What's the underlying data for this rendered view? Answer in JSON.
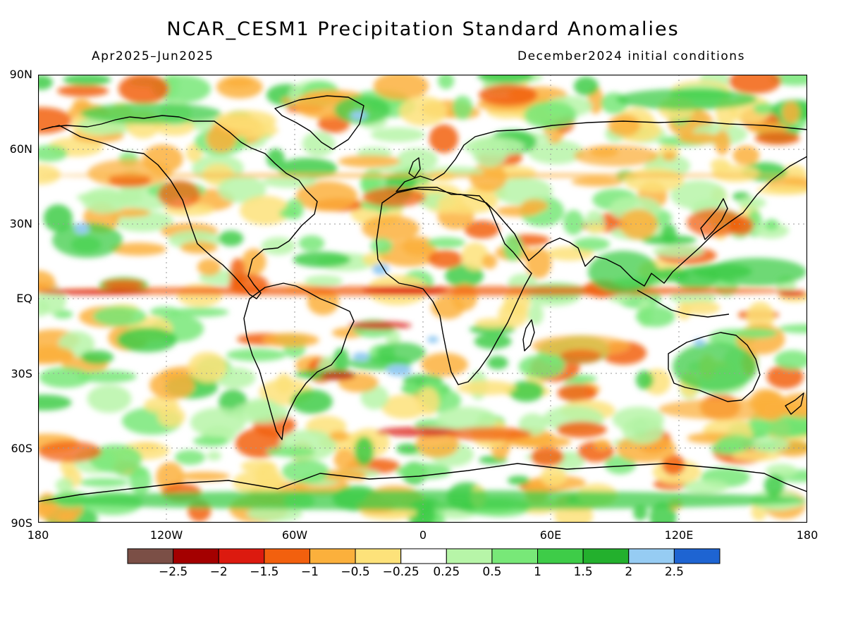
{
  "title": "NCAR_CESM1 Precipitation Standard Anomalies",
  "period": "Apr2025–Jun2025",
  "init": "December2024 initial conditions",
  "lat_labels": [
    "90N",
    "60N",
    "30N",
    "EQ",
    "30S",
    "60S",
    "90S"
  ],
  "lon_labels": [
    "180",
    "120W",
    "60W",
    "0",
    "60E",
    "120E",
    "180"
  ],
  "colorbar": {
    "colors": [
      "#7b4f46",
      "#a40000",
      "#dc1a0f",
      "#f2600e",
      "#fbb03c",
      "#fde27a",
      "#ffffff",
      "#b7f5a8",
      "#78e878",
      "#3ecc48",
      "#23b02d",
      "#96ccf3",
      "#1e64d2"
    ],
    "labels": [
      "−2.5",
      "−2",
      "−1.5",
      "−1",
      "−0.5",
      "−0.25",
      "0.25",
      "0.5",
      "1",
      "1.5",
      "2",
      "2.5"
    ]
  }
}
